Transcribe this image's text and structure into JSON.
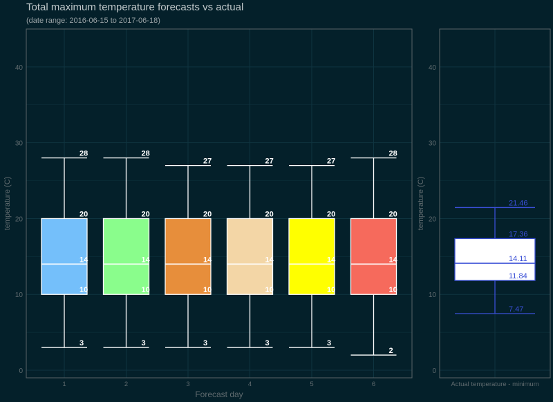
{
  "title": "Total maximum temperature forecasts vs actual",
  "subtitle": "(date range: 2016-06-15 to 2017-06-18)",
  "colors": {
    "background": "#04202a",
    "panel_border": "#5a6468",
    "grid": "#0f3440",
    "axis_text": "#5f6a6e",
    "whisker": "#ffffff",
    "actual_accent": "#3a4fd6"
  },
  "chart_data": [
    {
      "type": "boxplot",
      "xlabel": "Forecast day",
      "ylabel": "temperature (C)",
      "ylim": [
        -1,
        45
      ],
      "yticks": [
        0,
        10,
        20,
        30,
        40
      ],
      "grid": true,
      "categories": [
        "1",
        "2",
        "3",
        "4",
        "5",
        "6"
      ],
      "boxes": [
        {
          "category": "1",
          "min": 3,
          "q1": 10,
          "median": 14,
          "q3": 20,
          "max": 28,
          "color": "#74bffa"
        },
        {
          "category": "2",
          "min": 3,
          "q1": 10,
          "median": 14,
          "q3": 20,
          "max": 28,
          "color": "#8afd8c"
        },
        {
          "category": "3",
          "min": 3,
          "q1": 10,
          "median": 14,
          "q3": 20,
          "max": 27,
          "color": "#e78e3b"
        },
        {
          "category": "4",
          "min": 3,
          "q1": 10,
          "median": 14,
          "q3": 20,
          "max": 27,
          "color": "#f3d6a6"
        },
        {
          "category": "5",
          "min": 3,
          "q1": 10,
          "median": 14,
          "q3": 20,
          "max": 27,
          "color": "#ffff00"
        },
        {
          "category": "6",
          "min": 2,
          "q1": 10,
          "median": 14,
          "q3": 20,
          "max": 28,
          "color": "#f66a5c"
        }
      ],
      "label_format": "integer"
    },
    {
      "type": "boxplot",
      "xlabel": "",
      "ylabel": "temperature (C)",
      "ylim": [
        -1,
        45
      ],
      "yticks": [
        0,
        10,
        20,
        30,
        40
      ],
      "grid": true,
      "categories": [
        "Actual temperature - minimum"
      ],
      "boxes": [
        {
          "category": "Actual temperature - minimum",
          "min": 7.47,
          "q1": 11.84,
          "median": 14.11,
          "q3": 17.36,
          "max": 21.46,
          "color": "#ffffff"
        }
      ],
      "label_values": [
        "7.47",
        "11.84",
        "14.11",
        "17.36",
        "21.46"
      ]
    }
  ]
}
